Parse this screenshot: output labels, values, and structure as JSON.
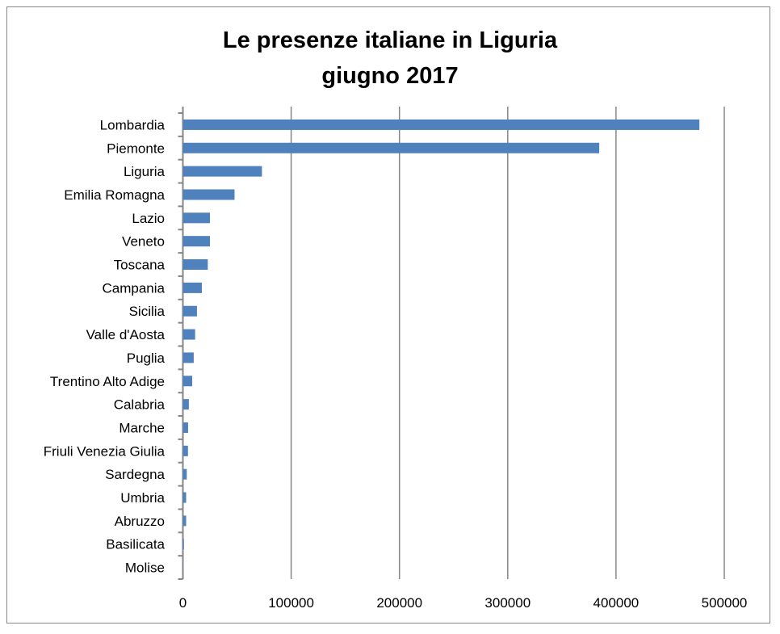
{
  "chart_data": {
    "type": "bar",
    "orientation": "horizontal",
    "title": "Le presenze italiane in Liguria",
    "subtitle": "giugno 2017",
    "categories": [
      "Lombardia",
      "Piemonte",
      "Liguria",
      "Emilia Romagna",
      "Lazio",
      "Veneto",
      "Toscana",
      "Campania",
      "Sicilia",
      "Valle d'Aosta",
      "Puglia",
      "Trentino Alto Adige",
      "Calabria",
      "Marche",
      "Friuli Venezia Giulia",
      "Sardegna",
      "Umbria",
      "Abruzzo",
      "Basilicata",
      "Molise"
    ],
    "values": [
      477000,
      384500,
      73000,
      47700,
      25000,
      25000,
      23000,
      17500,
      13000,
      11300,
      10000,
      8600,
      5500,
      4800,
      4700,
      3600,
      3000,
      3000,
      1000,
      200
    ],
    "xlim": [
      0,
      500000
    ],
    "xticks": [
      0,
      100000,
      200000,
      300000,
      400000,
      500000
    ],
    "xtick_labels": [
      "0",
      "100000",
      "200000",
      "300000",
      "400000",
      "500000"
    ],
    "xlabel": "",
    "ylabel": "",
    "grid": "vertical major",
    "bar_color": "#4f81bd",
    "legend": "none"
  }
}
